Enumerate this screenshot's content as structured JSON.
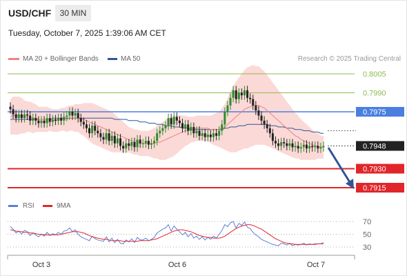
{
  "header": {
    "pair": "USD/CHF",
    "timeframe": "30 MIN",
    "timestamp": "Tuesday, October 7, 2025 1:39:06 AM CET"
  },
  "legend": {
    "ma20_label": "MA 20 + Bollinger Bands",
    "ma50_label": "MA 50",
    "credit": "Research © 2025 Trading Central"
  },
  "rsi_legend": {
    "rsi_label": "RSI",
    "ma9_label": "9MA"
  },
  "colors": {
    "ma20": "#f08080",
    "ma50": "#2f5597",
    "rsi": "#5b7fd6",
    "ma9": "#e0262b",
    "bull": "#2d8a2d",
    "bear": "#222222",
    "band_fill": "#fbd9d6",
    "resistance": "#8dbb4f",
    "pivot": "#4a7fe0",
    "support": "#e0262b",
    "arrow": "#2f5597"
  },
  "chart_data": [
    {
      "type": "candlestick",
      "x_labels": [
        "Oct 3",
        "Oct 6",
        "Oct 7"
      ],
      "ylim": [
        0.7905,
        0.8015
      ],
      "levels": [
        {
          "value": 0.8005,
          "label": "0.8005",
          "kind": "resistance"
        },
        {
          "value": 0.799,
          "label": "0.7990",
          "kind": "resistance"
        },
        {
          "value": 0.7975,
          "label": "0.7975",
          "kind": "pivot"
        },
        {
          "value": 0.7948,
          "label": "0.7948",
          "kind": "last"
        },
        {
          "value": 0.793,
          "label": "0.7930",
          "kind": "support"
        },
        {
          "value": 0.7915,
          "label": "0.7915",
          "kind": "support"
        }
      ],
      "closes": [
        0.7977,
        0.7973,
        0.797,
        0.7973,
        0.797,
        0.7973,
        0.7972,
        0.7968,
        0.797,
        0.7968,
        0.7966,
        0.7968,
        0.7966,
        0.797,
        0.7967,
        0.7969,
        0.7968,
        0.797,
        0.7968,
        0.7971,
        0.7972,
        0.7975,
        0.7972,
        0.7974,
        0.797,
        0.7967,
        0.7965,
        0.7962,
        0.7958,
        0.7964,
        0.796,
        0.7958,
        0.7955,
        0.7953,
        0.7958,
        0.7952,
        0.7956,
        0.795,
        0.7954,
        0.7948,
        0.7946,
        0.795,
        0.7948,
        0.7951,
        0.7947,
        0.7953,
        0.795,
        0.795,
        0.7952,
        0.7949,
        0.795,
        0.7952,
        0.7958,
        0.796,
        0.7962,
        0.7964,
        0.797,
        0.7965,
        0.7971,
        0.7968,
        0.7966,
        0.7962,
        0.7965,
        0.796,
        0.7963,
        0.7958,
        0.796,
        0.7956,
        0.7958,
        0.7955,
        0.7957,
        0.7955,
        0.7958,
        0.7956,
        0.796,
        0.7965,
        0.7975,
        0.798,
        0.7986,
        0.7992,
        0.7985,
        0.799,
        0.7988,
        0.7992,
        0.7986,
        0.7985,
        0.798,
        0.7976,
        0.7972,
        0.7968,
        0.7965,
        0.7962,
        0.7958,
        0.7952,
        0.795,
        0.7948,
        0.7951,
        0.795,
        0.7948,
        0.795,
        0.7947,
        0.7948,
        0.7946,
        0.7947,
        0.7949,
        0.7946,
        0.7948,
        0.7947,
        0.7948,
        0.7946,
        0.7947,
        0.7948
      ],
      "ma20": [
        0.7971,
        0.7972,
        0.7972,
        0.7972,
        0.7972,
        0.7971,
        0.7971,
        0.7971,
        0.797,
        0.797,
        0.7969,
        0.7969,
        0.7969,
        0.7969,
        0.7969,
        0.7968,
        0.7968,
        0.7968,
        0.7969,
        0.7969,
        0.7969,
        0.797,
        0.797,
        0.797,
        0.797,
        0.7969,
        0.7969,
        0.7968,
        0.7967,
        0.7966,
        0.7965,
        0.7964,
        0.7963,
        0.7962,
        0.7961,
        0.796,
        0.7959,
        0.7958,
        0.7957,
        0.7956,
        0.7955,
        0.7954,
        0.7953,
        0.7952,
        0.7951,
        0.7951,
        0.795,
        0.795,
        0.795,
        0.795,
        0.795,
        0.795,
        0.7951,
        0.7951,
        0.7952,
        0.7953,
        0.7954,
        0.7955,
        0.7956,
        0.7957,
        0.7958,
        0.7959,
        0.796,
        0.796,
        0.7961,
        0.7961,
        0.7962,
        0.7962,
        0.7962,
        0.7962,
        0.7962,
        0.7961,
        0.7961,
        0.7961,
        0.7961,
        0.7962,
        0.7963,
        0.7965,
        0.7967,
        0.7969,
        0.7971,
        0.7973,
        0.7975,
        0.7977,
        0.7978,
        0.7979,
        0.798,
        0.798,
        0.798,
        0.7979,
        0.7978,
        0.7976,
        0.7974,
        0.7972,
        0.797,
        0.7968,
        0.7966,
        0.7964,
        0.7962,
        0.796,
        0.7958,
        0.7956,
        0.7955,
        0.7953,
        0.7952,
        0.7951,
        0.795,
        0.7949,
        0.7948,
        0.7948,
        0.7947,
        0.7947
      ],
      "ma50": [
        0.7969,
        0.7969,
        0.7969,
        0.7969,
        0.7969,
        0.7969,
        0.7969,
        0.7969,
        0.7969,
        0.7969,
        0.7969,
        0.7969,
        0.7969,
        0.7969,
        0.7969,
        0.797,
        0.797,
        0.797,
        0.797,
        0.797,
        0.797,
        0.797,
        0.797,
        0.797,
        0.797,
        0.797,
        0.797,
        0.797,
        0.797,
        0.797,
        0.797,
        0.797,
        0.797,
        0.797,
        0.797,
        0.797,
        0.797,
        0.7969,
        0.7969,
        0.7969,
        0.7969,
        0.7969,
        0.7968,
        0.7968,
        0.7968,
        0.7968,
        0.7967,
        0.7967,
        0.7967,
        0.7966,
        0.7966,
        0.7966,
        0.7965,
        0.7965,
        0.7965,
        0.7964,
        0.7964,
        0.7964,
        0.7963,
        0.7963,
        0.7963,
        0.7962,
        0.7962,
        0.7962,
        0.7961,
        0.7961,
        0.7961,
        0.7961,
        0.7961,
        0.7961,
        0.7961,
        0.7961,
        0.7961,
        0.7961,
        0.7961,
        0.7961,
        0.7962,
        0.7962,
        0.7963,
        0.7963,
        0.7963,
        0.7964,
        0.7964,
        0.7964,
        0.7965,
        0.7965,
        0.7965,
        0.7965,
        0.7965,
        0.7965,
        0.7965,
        0.7965,
        0.7964,
        0.7964,
        0.7964,
        0.7963,
        0.7963,
        0.7963,
        0.7962,
        0.7962,
        0.7962,
        0.7961,
        0.7961,
        0.7961,
        0.796,
        0.796,
        0.796,
        0.7959,
        0.7959,
        0.7959,
        0.7958,
        0.7958
      ],
      "band_width": [
        0.0014,
        0.0015,
        0.0015,
        0.0015,
        0.0014,
        0.0013,
        0.0012,
        0.0012,
        0.0012,
        0.0011,
        0.001,
        0.001,
        0.001,
        0.001,
        0.0009,
        0.0009,
        0.0009,
        0.0009,
        0.0009,
        0.0009,
        0.001,
        0.001,
        0.001,
        0.0011,
        0.0011,
        0.0012,
        0.0013,
        0.0014,
        0.0015,
        0.0016,
        0.0016,
        0.0016,
        0.0016,
        0.0016,
        0.0016,
        0.0016,
        0.0016,
        0.0015,
        0.0014,
        0.0013,
        0.0012,
        0.0011,
        0.001,
        0.001,
        0.001,
        0.001,
        0.001,
        0.001,
        0.001,
        0.001,
        0.0011,
        0.0012,
        0.0013,
        0.0014,
        0.0015,
        0.0016,
        0.0016,
        0.0016,
        0.0016,
        0.0015,
        0.0014,
        0.0013,
        0.0012,
        0.0011,
        0.001,
        0.001,
        0.001,
        0.001,
        0.001,
        0.001,
        0.001,
        0.0011,
        0.0012,
        0.0013,
        0.0014,
        0.0016,
        0.0018,
        0.0021,
        0.0024,
        0.0026,
        0.0028,
        0.0029,
        0.003,
        0.0031,
        0.0032,
        0.0032,
        0.0032,
        0.0031,
        0.0031,
        0.003,
        0.0029,
        0.0028,
        0.0027,
        0.0026,
        0.0025,
        0.0024,
        0.0023,
        0.0022,
        0.0021,
        0.002,
        0.0019,
        0.0018,
        0.0017,
        0.0016,
        0.0015,
        0.0014,
        0.0013,
        0.0012,
        0.0011,
        0.001,
        0.0009,
        0.0009
      ]
    },
    {
      "type": "line",
      "name": "RSI",
      "y_ticks": [
        70,
        50,
        30
      ],
      "ylim": [
        25,
        75
      ],
      "rsi": [
        62,
        58,
        52,
        55,
        50,
        56,
        54,
        48,
        52,
        49,
        46,
        50,
        47,
        53,
        48,
        51,
        49,
        53,
        50,
        55,
        56,
        60,
        54,
        57,
        50,
        46,
        44,
        42,
        40,
        47,
        43,
        41,
        40,
        39,
        46,
        38,
        44,
        37,
        42,
        36,
        35,
        41,
        38,
        43,
        37,
        45,
        41,
        41,
        44,
        40,
        42,
        45,
        52,
        55,
        58,
        60,
        65,
        55,
        63,
        58,
        54,
        49,
        53,
        46,
        51,
        44,
        47,
        42,
        46,
        41,
        45,
        42,
        47,
        44,
        50,
        56,
        65,
        62,
        68,
        70,
        60,
        67,
        64,
        69,
        61,
        59,
        53,
        49,
        46,
        42,
        40,
        38,
        36,
        34,
        33,
        32,
        36,
        35,
        33,
        36,
        32,
        34,
        33,
        34,
        36,
        33,
        35,
        34,
        35,
        35,
        35,
        37
      ],
      "ma9": [
        57,
        56,
        55,
        54,
        54,
        53,
        53,
        52,
        52,
        51,
        50,
        50,
        49,
        49,
        49,
        49,
        49,
        49,
        50,
        51,
        52,
        53,
        54,
        54,
        54,
        53,
        52,
        50,
        48,
        46,
        45,
        44,
        43,
        42,
        42,
        41,
        40,
        40,
        40,
        40,
        39,
        39,
        39,
        39,
        39,
        39,
        40,
        40,
        40,
        40,
        41,
        42,
        43,
        45,
        47,
        49,
        51,
        53,
        55,
        56,
        57,
        57,
        56,
        55,
        54,
        52,
        50,
        48,
        47,
        46,
        45,
        45,
        44,
        44,
        44,
        45,
        47,
        50,
        53,
        56,
        59,
        61,
        63,
        64,
        65,
        65,
        64,
        62,
        60,
        58,
        55,
        52,
        49,
        46,
        43,
        41,
        39,
        37,
        36,
        35,
        35,
        34,
        34,
        34,
        34,
        34,
        34,
        34,
        34,
        35,
        35,
        35
      ]
    }
  ]
}
